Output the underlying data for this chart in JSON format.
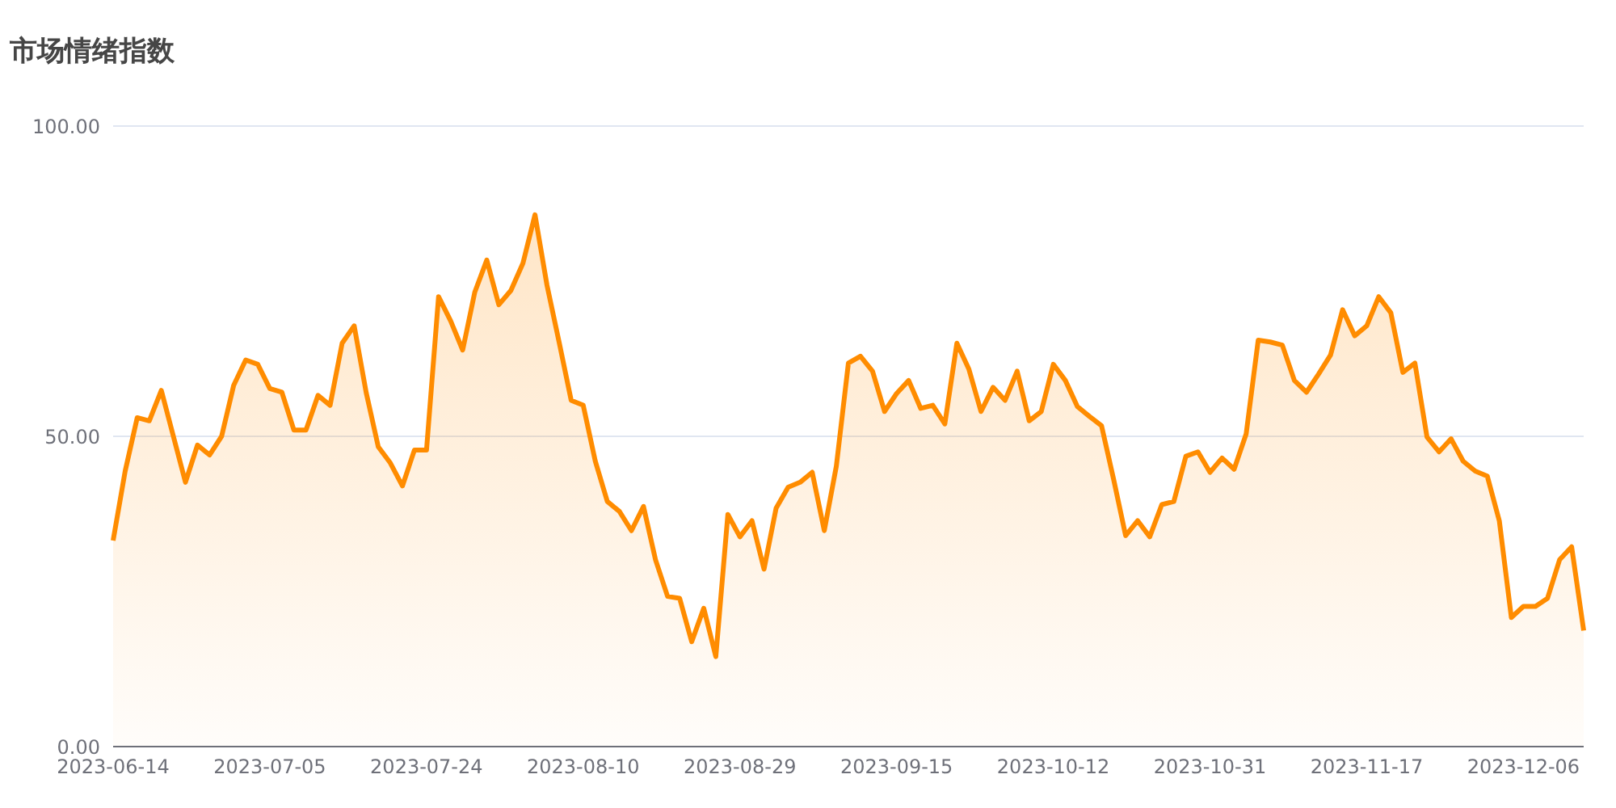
{
  "chart_data": {
    "type": "area",
    "title": "市场情绪指数",
    "categories": [
      "2023-06-14",
      null,
      null,
      null,
      null,
      null,
      null,
      null,
      null,
      null,
      null,
      null,
      null,
      "2023-07-05",
      null,
      null,
      null,
      null,
      null,
      null,
      null,
      null,
      null,
      null,
      null,
      null,
      "2023-07-24",
      null,
      null,
      null,
      null,
      null,
      null,
      null,
      null,
      null,
      null,
      null,
      null,
      "2023-08-10",
      null,
      null,
      null,
      null,
      null,
      null,
      null,
      null,
      null,
      null,
      null,
      null,
      "2023-08-29",
      null,
      null,
      null,
      null,
      null,
      null,
      null,
      null,
      null,
      null,
      null,
      null,
      "2023-09-15",
      null,
      null,
      null,
      null,
      null,
      null,
      null,
      null,
      null,
      null,
      null,
      null,
      "2023-10-12",
      null,
      null,
      null,
      null,
      null,
      null,
      null,
      null,
      null,
      null,
      null,
      null,
      "2023-10-31",
      null,
      null,
      null,
      null,
      null,
      null,
      null,
      null,
      null,
      null,
      null,
      null,
      "2023-11-17",
      null,
      null,
      null,
      null,
      null,
      null,
      null,
      null,
      null,
      null,
      null,
      null,
      "2023-12-06",
      null,
      null,
      null,
      null,
      null
    ],
    "series": [
      {
        "color": "#ff8c00",
        "values": [
          33.2,
          44.4,
          53,
          52.5,
          57.4,
          50,
          42.6,
          48.6,
          47,
          50,
          58.2,
          62.3,
          61.6,
          57.7,
          57.1,
          51,
          51,
          56.6,
          55,
          65,
          67.8,
          57,
          48.3,
          45.7,
          42,
          47.8,
          47.8,
          72.5,
          68.6,
          63.9,
          73.2,
          78.4,
          71.2,
          73.5,
          77.9,
          85.7,
          74.3,
          65.2,
          55.8,
          55,
          46,
          39.5,
          37.9,
          34.8,
          38.7,
          30.1,
          24.2,
          23.9,
          16.9,
          22.3,
          14.5,
          37.4,
          33.8,
          36.4,
          28.6,
          38.4,
          41.8,
          42.6,
          44.2,
          34.8,
          45.2,
          61.8,
          62.9,
          60.5,
          54,
          56.9,
          59,
          54.5,
          55,
          52,
          65,
          60.8,
          54,
          57.9,
          55.8,
          60.5,
          52.5,
          54,
          61.6,
          59,
          54.8,
          53.2,
          51.7,
          43.1,
          34,
          36.4,
          33.8,
          39,
          39.5,
          46.8,
          47.5,
          44.2,
          46.5,
          44.7,
          50.4,
          65.5,
          65.2,
          64.7,
          59,
          57.1,
          60,
          63.1,
          70.4,
          66.2,
          67.8,
          72.5,
          69.9,
          60.3,
          61.8,
          49.9,
          47.5,
          49.6,
          46,
          44.4,
          43.6,
          36.4,
          20.8,
          22.6,
          22.6,
          23.9,
          30.1,
          32.2,
          18.7
        ]
      }
    ],
    "ylim": [
      0,
      100
    ],
    "yticks": [
      {
        "value": 0,
        "label": "0.00"
      },
      {
        "value": 50,
        "label": "50.00"
      },
      {
        "value": 100,
        "label": "100.00"
      }
    ],
    "grid": "y",
    "marker": "none",
    "line_style": "solid"
  }
}
